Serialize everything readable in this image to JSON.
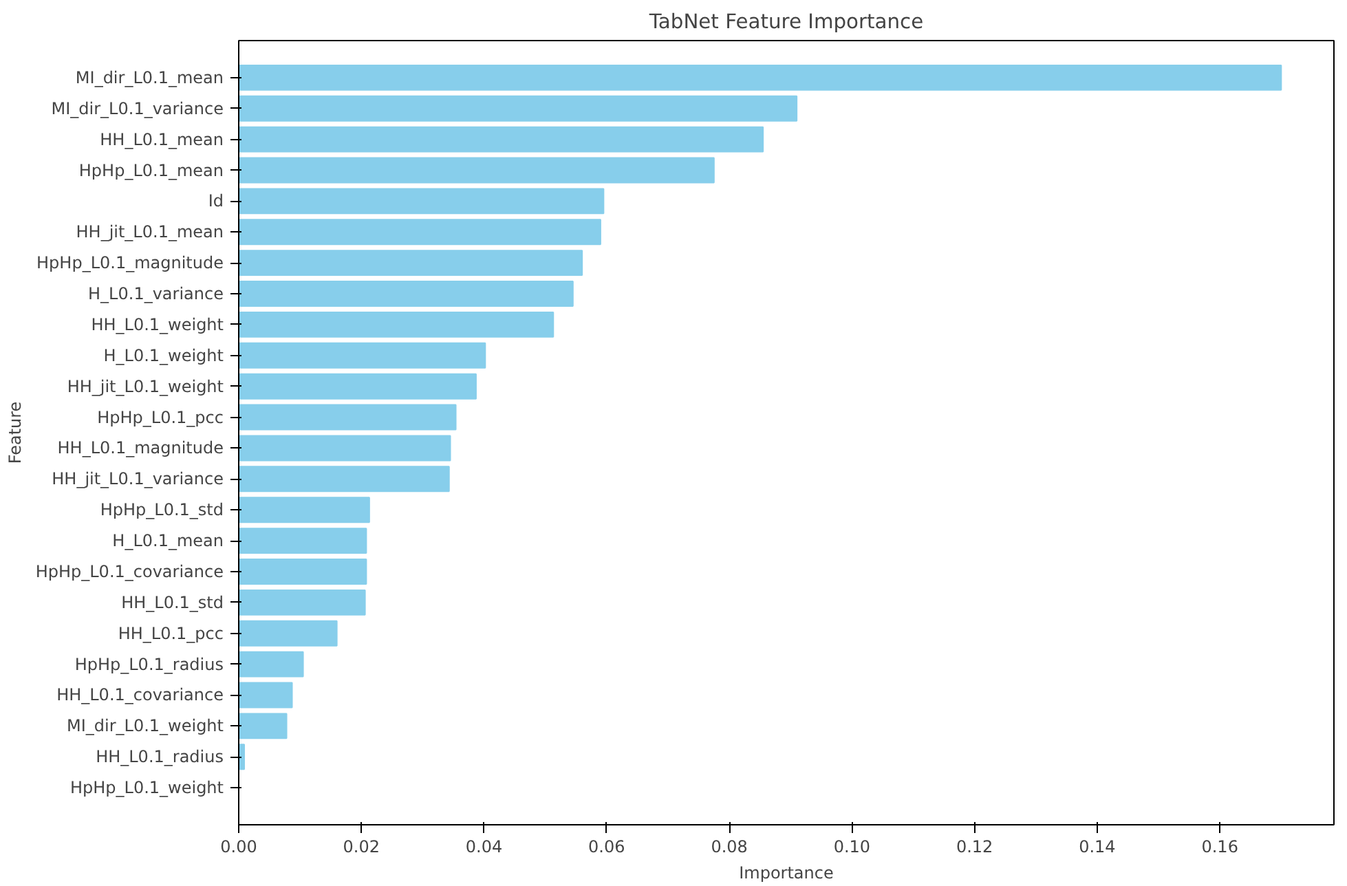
{
  "chart_data": {
    "type": "bar",
    "orientation": "horizontal",
    "title": "TabNet Feature Importance",
    "xlabel": "Importance",
    "ylabel": "Feature",
    "categories": [
      "MI_dir_L0.1_mean",
      "MI_dir_L0.1_variance",
      "HH_L0.1_mean",
      "HpHp_L0.1_mean",
      "Id",
      "HH_jit_L0.1_mean",
      "HpHp_L0.1_magnitude",
      "H_L0.1_variance",
      "HH_L0.1_weight",
      "H_L0.1_weight",
      "HH_jit_L0.1_weight",
      "HpHp_L0.1_pcc",
      "HH_L0.1_magnitude",
      "HH_jit_L0.1_variance",
      "HpHp_L0.1_std",
      "H_L0.1_mean",
      "HpHp_L0.1_covariance",
      "HH_L0.1_std",
      "HH_L0.1_pcc",
      "HpHp_L0.1_radius",
      "HH_L0.1_covariance",
      "MI_dir_L0.1_weight",
      "HH_L0.1_radius",
      "HpHp_L0.1_weight"
    ],
    "values": [
      0.17,
      0.091,
      0.0855,
      0.0775,
      0.0595,
      0.059,
      0.056,
      0.0545,
      0.0513,
      0.0402,
      0.0387,
      0.0354,
      0.0345,
      0.0343,
      0.0213,
      0.0208,
      0.0208,
      0.0206,
      0.016,
      0.0105,
      0.0087,
      0.0078,
      0.0009,
      0.0
    ],
    "color": "#87ceeb",
    "xlim": [
      0,
      0.1786
    ],
    "xticks": [
      {
        "value": 0,
        "label": "0.00"
      },
      {
        "value": 0.02,
        "label": "0.02"
      },
      {
        "value": 0.04,
        "label": "0.04"
      },
      {
        "value": 0.06,
        "label": "0.06"
      },
      {
        "value": 0.08,
        "label": "0.08"
      },
      {
        "value": 0.1,
        "label": "0.10"
      },
      {
        "value": 0.12,
        "label": "0.12"
      },
      {
        "value": 0.14,
        "label": "0.14"
      },
      {
        "value": 0.16,
        "label": "0.16"
      }
    ],
    "grid": false
  }
}
